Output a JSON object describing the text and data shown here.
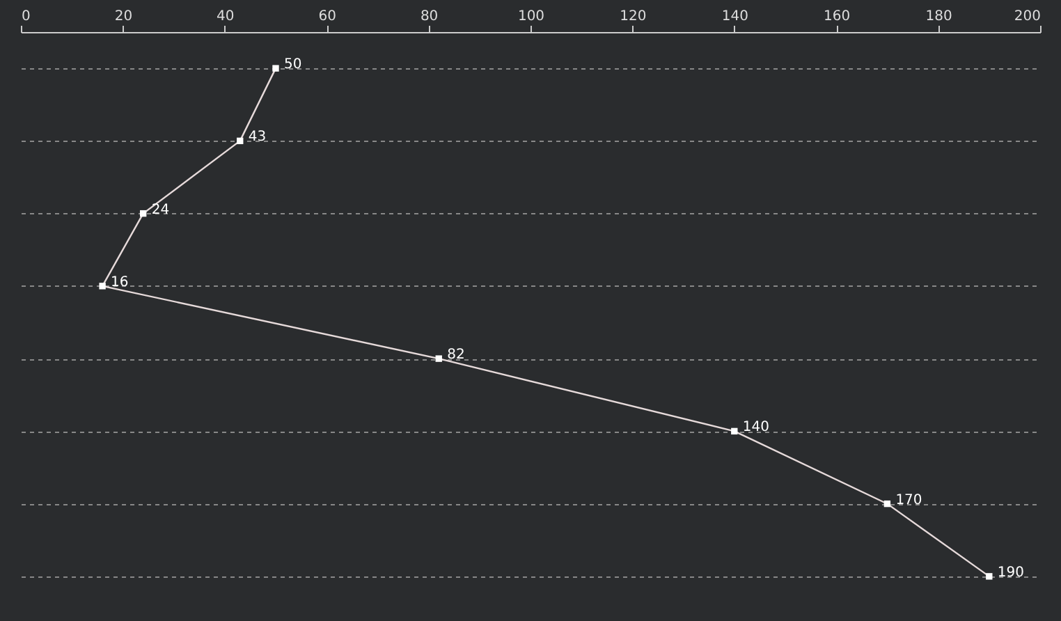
{
  "chart_data": {
    "type": "line",
    "orientation": "horizontal",
    "categories": [
      null,
      null,
      null,
      null,
      null,
      null,
      null,
      null
    ],
    "values": [
      50,
      43,
      24,
      16,
      82,
      140,
      170,
      190
    ],
    "color": "#e6dada",
    "xlim": [
      0,
      200
    ],
    "xticks": [
      0,
      20,
      40,
      60,
      80,
      100,
      120,
      140,
      160,
      180,
      200
    ],
    "grid": "y",
    "line_style": "solid",
    "marker": "square",
    "data_labels": true,
    "tick_labels": "x"
  }
}
